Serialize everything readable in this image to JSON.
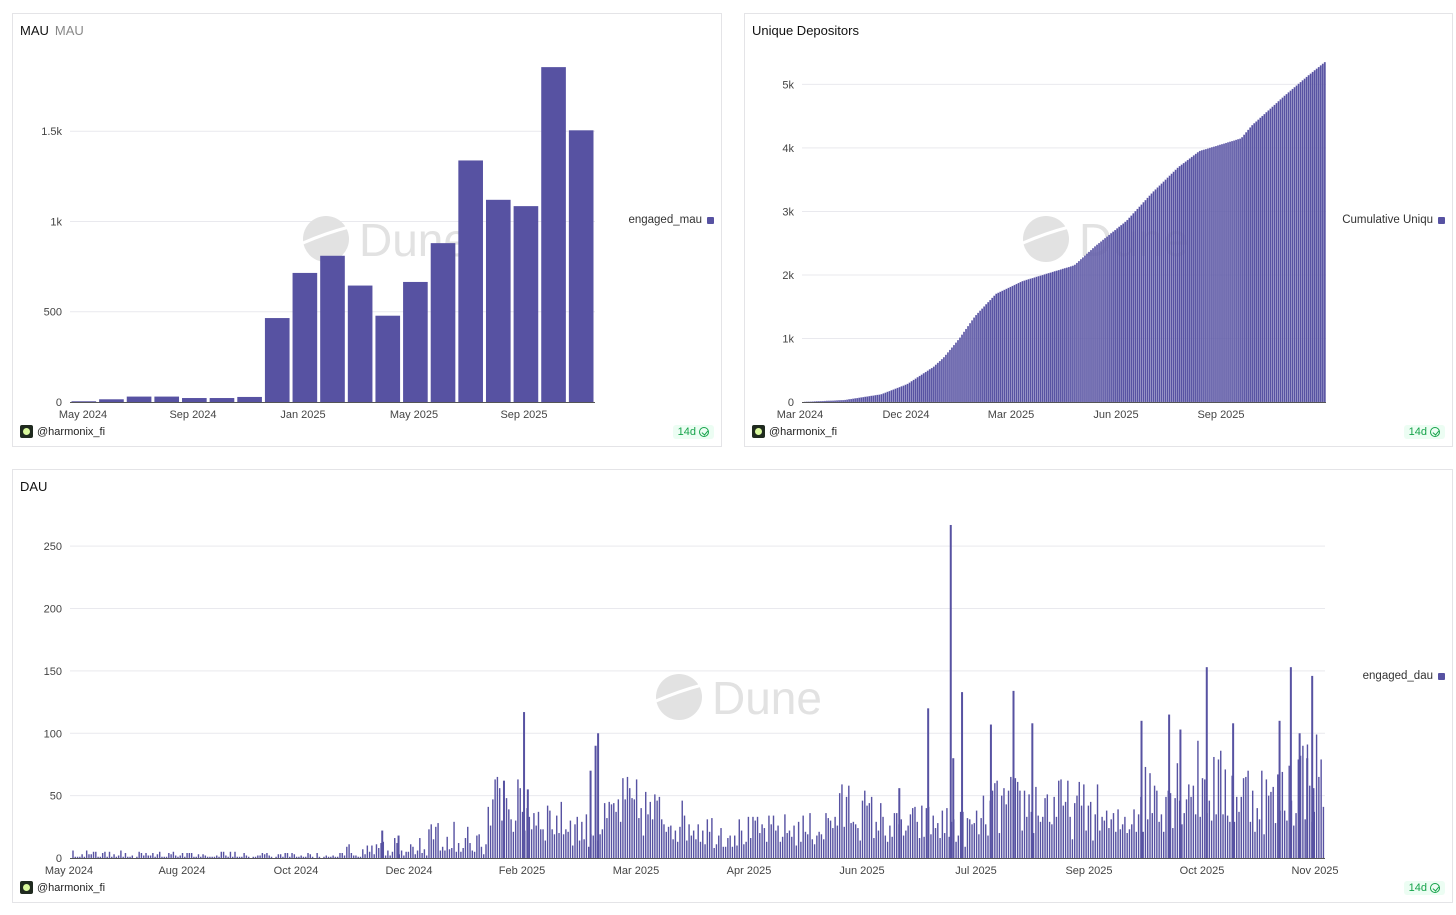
{
  "colors": {
    "bar": "#5752a2",
    "grid": "#e9e9ee",
    "axis": "#555555",
    "watermark": "#e2e2e2",
    "badge": "#16a34a"
  },
  "watermark": "Dune",
  "author": "@harmonix_fi",
  "refresh": "14d",
  "chart_data": [
    {
      "type": "bar",
      "title": "MAU",
      "subtitle": "MAU",
      "series_name": "engaged_mau",
      "x_tick_labels": [
        "May 2024",
        "Sep 2024",
        "Jan 2025",
        "May 2025",
        "Sep 2025"
      ],
      "y_tick_labels": [
        "0",
        "500",
        "1k",
        "1.5k"
      ],
      "y_ticks": [
        0,
        500,
        1000,
        1500
      ],
      "ylim": [
        0,
        1900
      ],
      "categories": [
        "2024-05",
        "2024-06",
        "2024-07",
        "2024-08",
        "2024-09",
        "2024-10",
        "2024-11",
        "2024-12",
        "2025-01",
        "2025-02",
        "2025-03",
        "2025-04",
        "2025-05",
        "2025-06",
        "2025-07",
        "2025-08",
        "2025-09",
        "2025-10",
        "2025-11"
      ],
      "values": [
        4,
        15,
        30,
        30,
        22,
        22,
        28,
        465,
        715,
        810,
        645,
        478,
        665,
        880,
        1338,
        1120,
        1085,
        1855,
        1505
      ]
    },
    {
      "type": "bar",
      "title": "Unique Depositors",
      "series_name": "Cumulative Uniqu",
      "x_tick_labels": [
        "Mar 2024",
        "Dec 2024",
        "Mar 2025",
        "Jun 2025",
        "Sep 2025"
      ],
      "y_tick_labels": [
        "0",
        "1k",
        "2k",
        "3k",
        "4k",
        "5k"
      ],
      "y_ticks": [
        0,
        1000,
        2000,
        3000,
        4000,
        5000
      ],
      "ylim": [
        0,
        5400
      ],
      "anchors": [
        [
          0,
          0
        ],
        [
          0.08,
          30
        ],
        [
          0.15,
          120
        ],
        [
          0.2,
          280
        ],
        [
          0.25,
          550
        ],
        [
          0.27,
          700
        ],
        [
          0.3,
          1000
        ],
        [
          0.33,
          1350
        ],
        [
          0.37,
          1700
        ],
        [
          0.42,
          1900
        ],
        [
          0.48,
          2050
        ],
        [
          0.52,
          2150
        ],
        [
          0.56,
          2450
        ],
        [
          0.62,
          2850
        ],
        [
          0.67,
          3300
        ],
        [
          0.72,
          3700
        ],
        [
          0.76,
          3950
        ],
        [
          0.84,
          4150
        ],
        [
          0.86,
          4350
        ],
        [
          0.92,
          4800
        ],
        [
          0.97,
          5150
        ],
        [
          1.0,
          5350
        ]
      ]
    },
    {
      "type": "bar",
      "title": "DAU",
      "series_name": "engaged_dau",
      "x_tick_labels": [
        "May 2024",
        "Aug 2024",
        "Oct 2024",
        "Dec 2024",
        "Feb 2025",
        "Mar 2025",
        "Apr 2025",
        "Jun 2025",
        "Jul 2025",
        "Sep 2025",
        "Oct 2025",
        "Nov 2025"
      ],
      "y_tick_labels": [
        "0",
        "50",
        "100",
        "150",
        "200",
        "250"
      ],
      "y_ticks": [
        0,
        50,
        100,
        150,
        200,
        250
      ],
      "ylim": [
        0,
        275
      ],
      "segments": [
        [
          0,
          4,
          0.9
        ],
        [
          0.22,
          3,
          0.9
        ],
        [
          0.22,
          8,
          0.7
        ],
        [
          0.255,
          10,
          0.7
        ],
        [
          0.27,
          18,
          0.9
        ],
        [
          0.33,
          24,
          0.9
        ],
        [
          0.335,
          35,
          0.9
        ],
        [
          0.34,
          48,
          0.9
        ],
        [
          0.4,
          28,
          0.9
        ],
        [
          0.42,
          22,
          0.9
        ],
        [
          0.44,
          46,
          0.9
        ],
        [
          0.51,
          25,
          0.9
        ],
        [
          0.52,
          22,
          0.9
        ],
        [
          0.6,
          25,
          0.9
        ],
        [
          0.62,
          45,
          0.9
        ],
        [
          0.66,
          25,
          0.9
        ],
        [
          0.68,
          30,
          0.9
        ],
        [
          0.69,
          30,
          0.9
        ],
        [
          0.72,
          25,
          0.9
        ],
        [
          0.74,
          45,
          0.9
        ],
        [
          0.78,
          45,
          0.9
        ],
        [
          0.82,
          40,
          0.9
        ],
        [
          0.83,
          25,
          0.9
        ],
        [
          0.84,
          30,
          0.9
        ],
        [
          0.86,
          55,
          0.9
        ],
        [
          0.9,
          65,
          0.9
        ],
        [
          0.93,
          55,
          0.9
        ],
        [
          0.95,
          55,
          0.9
        ],
        [
          0.96,
          45,
          0.9
        ],
        [
          0.98,
          70,
          0.9
        ],
        [
          1.0,
          70,
          0.9
        ]
      ],
      "spikes": [
        [
          0.248,
          22
        ],
        [
          0.261,
          18
        ],
        [
          0.345,
          62
        ],
        [
          0.361,
          117
        ],
        [
          0.364,
          55
        ],
        [
          0.414,
          70
        ],
        [
          0.418,
          90
        ],
        [
          0.42,
          100
        ],
        [
          0.66,
          56
        ],
        [
          0.683,
          120
        ],
        [
          0.701,
          267
        ],
        [
          0.703,
          80
        ],
        [
          0.71,
          133
        ],
        [
          0.733,
          107
        ],
        [
          0.751,
          134
        ],
        [
          0.766,
          108
        ],
        [
          0.853,
          110
        ],
        [
          0.875,
          115
        ],
        [
          0.884,
          103
        ],
        [
          0.905,
          153
        ],
        [
          0.926,
          108
        ],
        [
          0.963,
          110
        ],
        [
          0.972,
          153
        ],
        [
          0.979,
          100
        ],
        [
          0.985,
          80
        ],
        [
          0.989,
          146
        ],
        [
          0.99,
          56
        ]
      ]
    }
  ]
}
